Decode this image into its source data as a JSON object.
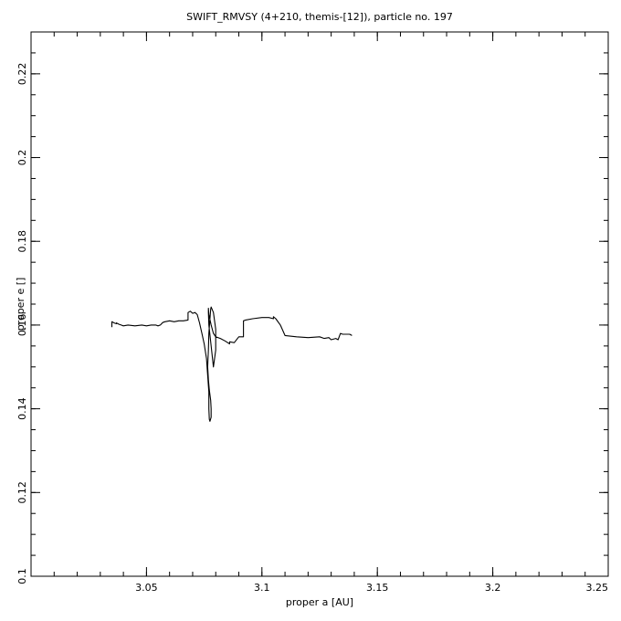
{
  "chart_data": {
    "type": "line",
    "title": "SWIFT_RMVSY (4+210, themis-[12]), particle no. 197",
    "xlabel": "proper a [AU]",
    "ylabel": "proper e []",
    "xlim": [
      3.0,
      3.25
    ],
    "ylim": [
      0.1,
      0.23
    ],
    "xticks": [
      3.05,
      3.1,
      3.15,
      3.2,
      3.25
    ],
    "xtick_labels": [
      "3.05",
      "3.1",
      "3.15",
      "3.2",
      "3.25"
    ],
    "xminor_step": 0.01,
    "yticks": [
      0.1,
      0.12,
      0.14,
      0.16,
      0.18,
      0.2,
      0.22
    ],
    "ytick_labels": [
      "0.1",
      "0.12",
      "0.14",
      "0.16",
      "0.18",
      "0.2",
      "0.22"
    ],
    "yminor_step": 0.005,
    "grid": false,
    "series": [
      {
        "color": "#000000",
        "x": [
          3.035,
          3.035,
          3.036,
          3.037,
          3.037,
          3.038,
          3.039,
          3.04,
          3.042,
          3.045,
          3.048,
          3.05,
          3.052,
          3.054,
          3.055,
          3.056,
          3.057,
          3.058,
          3.06,
          3.062,
          3.064,
          3.066,
          3.068,
          3.068,
          3.069,
          3.07,
          3.071,
          3.072,
          3.073,
          3.074,
          3.075,
          3.076,
          3.0765,
          3.077,
          3.077,
          3.0772,
          3.0775,
          3.078,
          3.078,
          3.0778,
          3.0772,
          3.0768,
          3.0765,
          3.0768,
          3.077,
          3.0775,
          3.0778,
          3.078,
          3.079,
          3.08,
          3.08,
          3.079,
          3.078,
          3.077,
          3.0768,
          3.0768,
          3.077,
          3.078,
          3.079,
          3.08,
          3.082,
          3.084,
          3.086,
          3.086,
          3.088,
          3.09,
          3.092,
          3.092,
          3.093,
          3.096,
          3.1,
          3.103,
          3.105,
          3.105,
          3.106,
          3.108,
          3.11,
          3.115,
          3.12,
          3.125,
          3.127,
          3.129,
          3.13,
          3.132,
          3.133,
          3.134,
          3.135,
          3.138,
          3.139
        ],
        "y": [
          0.1595,
          0.1608,
          0.1605,
          0.1603,
          0.1605,
          0.1602,
          0.16,
          0.1598,
          0.16,
          0.1598,
          0.16,
          0.1598,
          0.16,
          0.16,
          0.1598,
          0.16,
          0.1606,
          0.1608,
          0.161,
          0.1608,
          0.161,
          0.161,
          0.1612,
          0.163,
          0.1633,
          0.1628,
          0.163,
          0.1625,
          0.1605,
          0.158,
          0.1555,
          0.152,
          0.148,
          0.144,
          0.14,
          0.1375,
          0.137,
          0.138,
          0.14,
          0.142,
          0.1445,
          0.147,
          0.15,
          0.154,
          0.158,
          0.1615,
          0.1638,
          0.1643,
          0.163,
          0.159,
          0.154,
          0.15,
          0.155,
          0.16,
          0.163,
          0.164,
          0.1625,
          0.16,
          0.158,
          0.1572,
          0.1568,
          0.1562,
          0.1555,
          0.156,
          0.1558,
          0.1572,
          0.1572,
          0.161,
          0.1612,
          0.1615,
          0.1618,
          0.1618,
          0.1615,
          0.162,
          0.1615,
          0.16,
          0.1575,
          0.1572,
          0.157,
          0.1572,
          0.1568,
          0.157,
          0.1565,
          0.1568,
          0.1565,
          0.158,
          0.1578,
          0.1578,
          0.1575
        ]
      }
    ]
  }
}
